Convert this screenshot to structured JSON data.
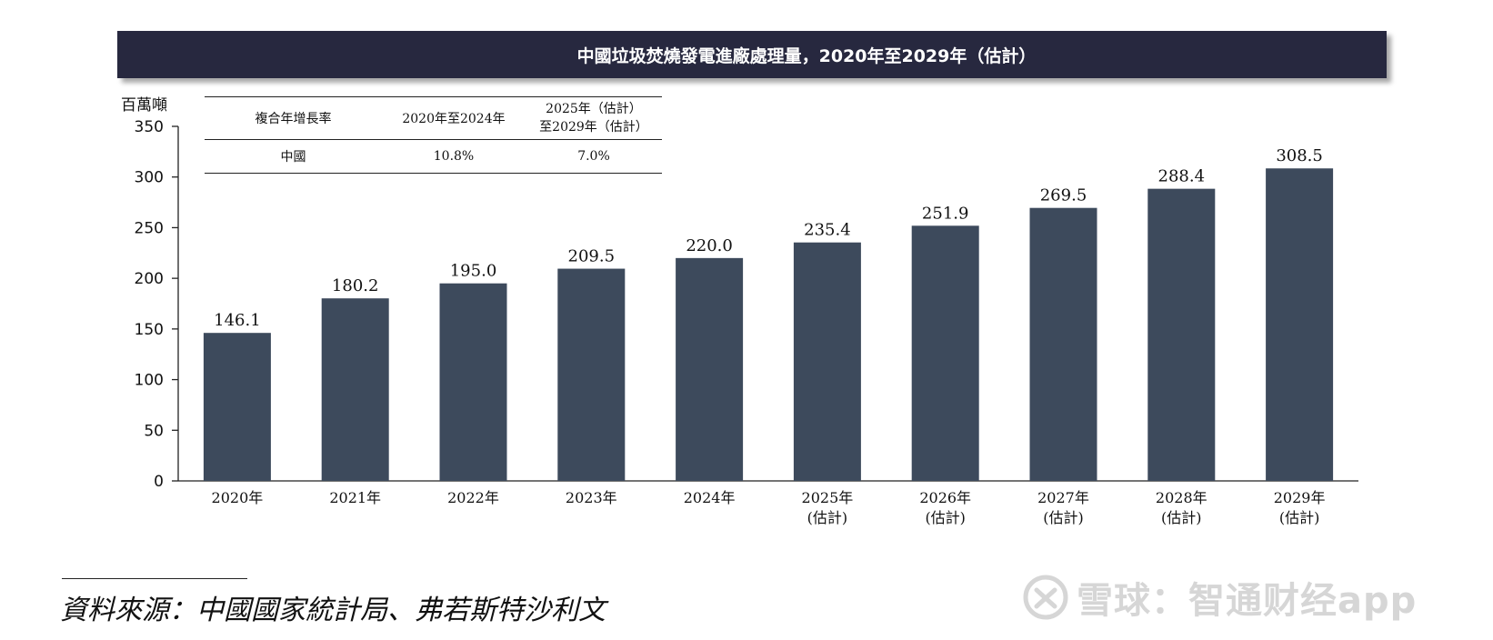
{
  "title": "中國垃圾焚燒發電進廠處理量，2020年至2029年（估計）",
  "unit_label": "百萬噸",
  "cagr_table": {
    "header": {
      "label": "複合年增長率",
      "period1": "2020年至2024年",
      "period2_line1": "2025年（估計）",
      "period2_line2": "至2029年（估計）"
    },
    "rows": [
      {
        "region": "中國",
        "cagr1": "10.8%",
        "cagr2": "7.0%"
      }
    ]
  },
  "chart_data": {
    "type": "bar",
    "title": "中國垃圾焚燒發電進廠處理量，2020年至2029年（估計）",
    "ylabel": "百萬噸",
    "xlabel": "",
    "ylim": [
      0,
      350
    ],
    "yticks": [
      0,
      50,
      100,
      150,
      200,
      250,
      300,
      350
    ],
    "categories": [
      {
        "line1": "2020年",
        "line2": ""
      },
      {
        "line1": "2021年",
        "line2": ""
      },
      {
        "line1": "2022年",
        "line2": ""
      },
      {
        "line1": "2023年",
        "line2": ""
      },
      {
        "line1": "2024年",
        "line2": ""
      },
      {
        "line1": "2025年",
        "line2": "(估計)"
      },
      {
        "line1": "2026年",
        "line2": "(估計)"
      },
      {
        "line1": "2027年",
        "line2": "(估計)"
      },
      {
        "line1": "2028年",
        "line2": "(估計)"
      },
      {
        "line1": "2029年",
        "line2": "(估計)"
      }
    ],
    "values": [
      146.1,
      180.2,
      195.0,
      209.5,
      220.0,
      235.4,
      251.9,
      269.5,
      288.4,
      308.5
    ],
    "value_labels": [
      "146.1",
      "180.2",
      "195.0",
      "209.5",
      "220.0",
      "235.4",
      "251.9",
      "269.5",
      "288.4",
      "308.5"
    ],
    "bar_color": "#3d4a5c"
  },
  "source": "資料來源：中國國家統計局、弗若斯特沙利文",
  "watermark": "雪球：智通财经app",
  "watermark_icon": "xueqiu-logo-icon"
}
